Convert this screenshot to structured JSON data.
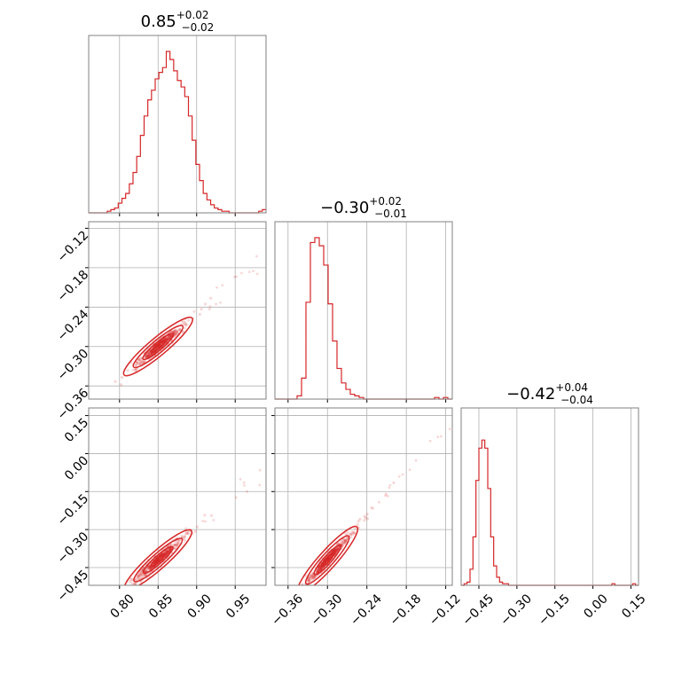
{
  "chart_data": {
    "type": "corner",
    "color": "#d62728",
    "grid": true,
    "parameters": [
      {
        "title": {
          "median": "0.85",
          "plus": "+0.02",
          "minus": "−0.02"
        },
        "range": [
          0.76,
          0.99
        ],
        "ticks": [
          0.8,
          0.85,
          0.9,
          0.95
        ],
        "tick_labels": [
          "0.80",
          "0.85",
          "0.90",
          "0.95"
        ],
        "hist": [
          0,
          0,
          0,
          0,
          0,
          0.01,
          0.02,
          0.03,
          0.06,
          0.09,
          0.12,
          0.18,
          0.25,
          0.35,
          0.48,
          0.6,
          0.7,
          0.76,
          0.83,
          0.87,
          0.9,
          1.0,
          0.95,
          0.88,
          0.82,
          0.78,
          0.72,
          0.6,
          0.45,
          0.3,
          0.2,
          0.12,
          0.08,
          0.05,
          0.03,
          0.02,
          0.01,
          0.01,
          0,
          0,
          0,
          0,
          0,
          0,
          0,
          0,
          0.01,
          0.02
        ]
      },
      {
        "title": {
          "median": "−0.30",
          "plus": "+0.02",
          "minus": "−0.01"
        },
        "range": [
          -0.38,
          -0.11
        ],
        "ticks": [
          -0.36,
          -0.3,
          -0.24,
          -0.18,
          -0.12
        ],
        "tick_labels": [
          "−0.36",
          "−0.30",
          "−0.24",
          "−0.18",
          "−0.12"
        ],
        "hist": [
          0,
          0,
          0,
          0,
          0,
          0.02,
          0.13,
          0.6,
          0.97,
          1.0,
          0.95,
          0.83,
          0.59,
          0.36,
          0.19,
          0.1,
          0.06,
          0.03,
          0.02,
          0.01,
          0,
          0,
          0,
          0,
          0,
          0,
          0,
          0,
          0,
          0,
          0,
          0,
          0,
          0,
          0,
          0,
          0.01,
          0,
          0.01,
          0
        ]
      },
      {
        "title": {
          "median": "−0.42",
          "plus": "+0.04",
          "minus": "−0.04"
        },
        "range": [
          -0.52,
          0.18
        ],
        "ticks": [
          -0.45,
          -0.3,
          -0.15,
          0.0,
          0.15
        ],
        "tick_labels": [
          "−0.45",
          "−0.30",
          "−0.15",
          "0.00",
          "0.15"
        ],
        "hist": [
          0,
          0.01,
          0.02,
          0.1,
          0.3,
          0.65,
          0.85,
          0.9,
          0.85,
          0.6,
          0.3,
          0.12,
          0.05,
          0.02,
          0.01,
          0.01,
          0,
          0,
          0,
          0,
          0,
          0,
          0,
          0,
          0,
          0,
          0,
          0,
          0,
          0,
          0,
          0,
          0,
          0,
          0,
          0,
          0,
          0,
          0,
          0,
          0,
          0,
          0,
          0,
          0,
          0,
          0,
          0,
          0,
          0,
          0,
          0.01,
          0,
          0,
          0,
          0,
          0,
          0,
          0.01,
          0
        ]
      }
    ],
    "correlations": [
      {
        "x": 0,
        "y": 1,
        "slope": 0.98,
        "intercept": -1.133,
        "spread": 0.0045
      },
      {
        "x": 0,
        "y": 2,
        "slope": 2.7,
        "intercept": -2.715,
        "spread": 0.012
      },
      {
        "x": 1,
        "y": 2,
        "slope": 2.9,
        "intercept": 0.45,
        "spread": 0.01
      }
    ]
  }
}
